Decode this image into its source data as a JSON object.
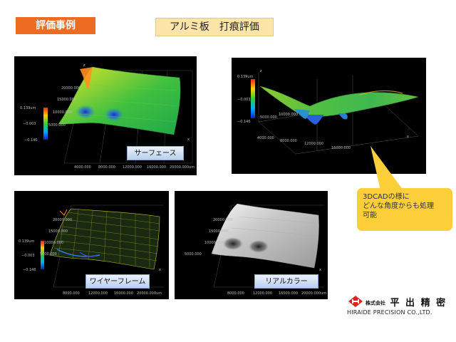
{
  "header": {
    "tag_label": "評価事例",
    "slide_title": "アルミ板　打痕評価"
  },
  "panels": {
    "surface": {
      "caption": "サーフェース",
      "scale_max": "0.139um",
      "scale_mid": "−0.003",
      "scale_min": "−0.146",
      "y_ticks": [
        "20000.000",
        "15000.000",
        "10000.000",
        "5000.000"
      ],
      "x_ticks": [
        "4000.000",
        "8000.000",
        "12000.000",
        "16000.000",
        "20000.000um"
      ],
      "x_axis": "x",
      "z_axis": "z"
    },
    "cad": {
      "scale_max": "0.139um",
      "scale_mid": "−0.003",
      "scale_min": "−0.146",
      "y_ticks": [
        "10000.000",
        "5000.000"
      ],
      "x_ticks": [
        "4000.000",
        "8000.000",
        "12000.000",
        "16000.000"
      ],
      "x_axis": "x",
      "z_axis": "z"
    },
    "wireframe": {
      "caption": "ワイヤーフレーム",
      "scale_max": "0.139um",
      "scale_mid": "−0.003",
      "scale_min": "−0.146",
      "y_ticks": [
        "20000.000",
        "15000.000",
        "10000.000",
        "5000.000"
      ],
      "x_ticks": [
        "8000.000",
        "12000.000",
        "16000.000",
        "20000.000um"
      ],
      "x_axis": "x"
    },
    "realcolor": {
      "caption": "リアルカラー",
      "y_ticks": [
        "20000.000",
        "15000.000",
        "10000.000",
        "5000.000"
      ],
      "x_ticks": [
        "8000.000",
        "12000.000",
        "16000.000",
        "20000.000um"
      ],
      "x_axis": "x"
    }
  },
  "callout": {
    "text": "3DCADの様に\nどんな角度からも処理\n可能",
    "color": "#fccf3a"
  },
  "logo": {
    "jp_prefix": "株式会社",
    "jp_name": "平 出 精 密",
    "en_name": "HIRAIDE PRECISION CO.,LTD.",
    "mark_color": "#d9261c"
  }
}
